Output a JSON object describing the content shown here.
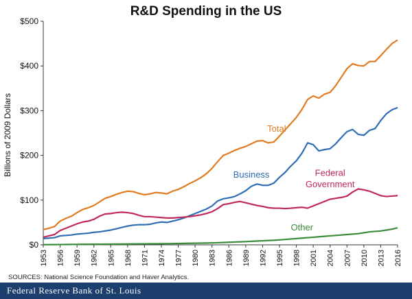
{
  "chart_data": {
    "type": "line",
    "title": "R&D Spending in the US",
    "ylabel": "Billions of 2009 Dollars",
    "xlabel": "",
    "ylim": [
      0,
      500
    ],
    "xlim": [
      1953,
      2016
    ],
    "y_ticks": [
      0,
      100,
      200,
      300,
      400,
      500
    ],
    "y_tick_labels": [
      "$0",
      "$100",
      "$200",
      "$300",
      "$400",
      "$500"
    ],
    "x_ticks": [
      1953,
      1956,
      1959,
      1962,
      1965,
      1968,
      1971,
      1974,
      1977,
      1980,
      1983,
      1986,
      1989,
      1992,
      1995,
      1998,
      2001,
      2004,
      2007,
      2010,
      2013,
      2016
    ],
    "grid": false,
    "legend": "inline labels",
    "x": [
      1953,
      1954,
      1955,
      1956,
      1957,
      1958,
      1959,
      1960,
      1961,
      1962,
      1963,
      1964,
      1965,
      1966,
      1967,
      1968,
      1969,
      1970,
      1971,
      1972,
      1973,
      1974,
      1975,
      1976,
      1977,
      1978,
      1979,
      1980,
      1981,
      1982,
      1983,
      1984,
      1985,
      1986,
      1987,
      1988,
      1989,
      1990,
      1991,
      1992,
      1993,
      1994,
      1995,
      1996,
      1997,
      1998,
      1999,
      2000,
      2001,
      2002,
      2003,
      2004,
      2005,
      2006,
      2007,
      2008,
      2009,
      2010,
      2011,
      2012,
      2013,
      2014,
      2015,
      2016
    ],
    "series": [
      {
        "name": "Total",
        "color": "#e07b20",
        "values": [
          34,
          37,
          41,
          53,
          59,
          64,
          72,
          79,
          83,
          88,
          96,
          104,
          108,
          113,
          117,
          120,
          119,
          115,
          112,
          114,
          117,
          116,
          114,
          120,
          124,
          130,
          137,
          143,
          150,
          159,
          171,
          186,
          200,
          205,
          211,
          216,
          220,
          226,
          232,
          233,
          228,
          230,
          243,
          257,
          271,
          285,
          303,
          325,
          333,
          328,
          337,
          341,
          356,
          375,
          394,
          405,
          401,
          400,
          410,
          410,
          423,
          437,
          450,
          458
        ]
      },
      {
        "name": "Business",
        "color": "#2e6db3",
        "values": [
          14,
          15,
          16,
          20,
          21,
          22,
          24,
          25,
          26,
          28,
          29,
          31,
          33,
          36,
          39,
          42,
          44,
          45,
          45,
          46,
          49,
          51,
          50,
          53,
          56,
          60,
          65,
          70,
          75,
          80,
          87,
          98,
          103,
          105,
          108,
          114,
          121,
          131,
          136,
          133,
          133,
          138,
          151,
          162,
          176,
          188,
          205,
          228,
          224,
          210,
          213,
          215,
          226,
          240,
          253,
          258,
          247,
          245,
          256,
          260,
          278,
          293,
          302,
          307
        ]
      },
      {
        "name": "Federal Government",
        "color": "#c0285a",
        "values": [
          17,
          20,
          23,
          32,
          37,
          42,
          47,
          51,
          53,
          57,
          64,
          69,
          70,
          72,
          73,
          72,
          70,
          66,
          63,
          63,
          62,
          61,
          60,
          60,
          61,
          62,
          63,
          65,
          67,
          70,
          74,
          81,
          90,
          92,
          95,
          97,
          94,
          91,
          88,
          86,
          83,
          82,
          82,
          81,
          82,
          83,
          84,
          82,
          87,
          92,
          97,
          102,
          104,
          106,
          109,
          118,
          125,
          123,
          120,
          115,
          110,
          108,
          109,
          110
        ]
      },
      {
        "name": "Other",
        "color": "#3a8a3a",
        "values": [
          0.4,
          0.5,
          0.6,
          0.7,
          0.8,
          0.9,
          1.0,
          1.1,
          1.2,
          1.3,
          1.4,
          1.5,
          1.6,
          1.7,
          1.8,
          1.9,
          2.0,
          2.1,
          2.2,
          2.3,
          2.4,
          2.5,
          2.6,
          2.8,
          3.0,
          3.2,
          3.4,
          3.6,
          3.8,
          4.0,
          4.3,
          4.7,
          5.2,
          5.7,
          6.2,
          6.7,
          7.2,
          7.8,
          8.4,
          9.0,
          9.6,
          10.2,
          11,
          12,
          13,
          14,
          15,
          16,
          17,
          18,
          19,
          20,
          21,
          22,
          23,
          24,
          25,
          27,
          29,
          30,
          31,
          33,
          35,
          38
        ]
      }
    ],
    "series_labels": [
      {
        "text": "Total",
        "color": "#e07b20",
        "at_x": 1994.5,
        "at_y": 253
      },
      {
        "text": "Business",
        "color": "#2e6db3",
        "at_x": 1990,
        "at_y": 150
      },
      {
        "text": "Federal",
        "color": "#c0285a",
        "at_x": 2004,
        "at_y": 154
      },
      {
        "text": "Government",
        "color": "#c0285a",
        "at_x": 2004,
        "at_y": 129
      },
      {
        "text": "Other",
        "color": "#3a8a3a",
        "at_x": 1999,
        "at_y": 32
      }
    ]
  },
  "source_note": "SOURCES: National Science Foundation and Haver Analytics.",
  "footer": {
    "text": "Federal Reserve Bank of St. Louis",
    "background": "#1c3f6e"
  }
}
